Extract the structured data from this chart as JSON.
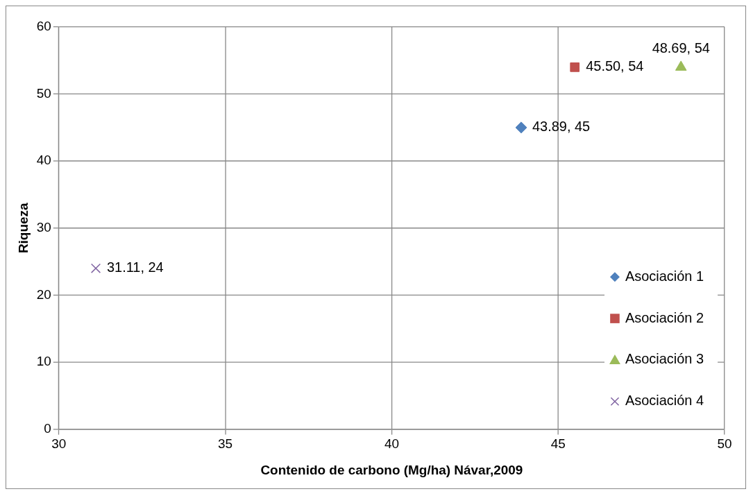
{
  "chart_data": {
    "type": "scatter",
    "xlabel": "Contenido de carbono (Mg/ha) Návar,2009",
    "ylabel": "Riqueza",
    "xlim": [
      30,
      50
    ],
    "xticks": [
      30,
      35,
      40,
      45,
      50
    ],
    "ylim": [
      0,
      60
    ],
    "yticks": [
      0,
      10,
      20,
      30,
      40,
      50,
      60
    ],
    "grid": true,
    "legend": "bottom right",
    "series": [
      {
        "name": "Asociación 1",
        "color": "#4f81bd",
        "marker": "diamond",
        "x": [
          43.89
        ],
        "values": [
          45
        ],
        "value_labels": [
          "43.89, 45"
        ]
      },
      {
        "name": "Asociación 2",
        "color": "#c0504d",
        "marker": "square",
        "x": [
          45.5
        ],
        "values": [
          54
        ],
        "value_labels": [
          "45.50, 54"
        ]
      },
      {
        "name": "Asociación 3",
        "color": "#9bbb59",
        "marker": "triangle",
        "x": [
          48.69
        ],
        "values": [
          54
        ],
        "value_labels": [
          "48.69, 54"
        ]
      },
      {
        "name": "Asociación 4",
        "color": "#8064a2",
        "marker": "cross",
        "x": [
          31.11
        ],
        "values": [
          24
        ],
        "value_labels": [
          "31.11, 24"
        ]
      }
    ]
  }
}
